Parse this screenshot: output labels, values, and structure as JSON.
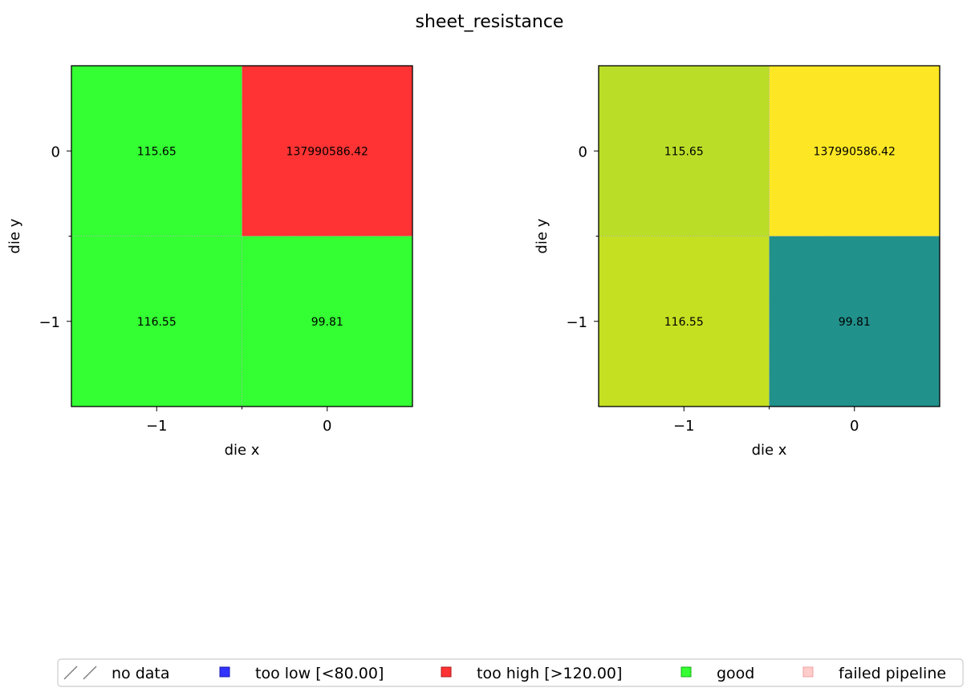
{
  "title": "sheet_resistance",
  "chart_data": [
    {
      "type": "heatmap",
      "coloring": "categorical-threshold",
      "xlabel": "die x",
      "ylabel": "die y",
      "x_ticks": [
        "−1",
        "0"
      ],
      "y_ticks": [
        "0",
        "−1"
      ],
      "cells": [
        {
          "die_x": -1,
          "die_y": 0,
          "value": 115.65,
          "label": "115.65",
          "category": "good",
          "color": "#33ff33"
        },
        {
          "die_x": 0,
          "die_y": 0,
          "value": 137990586.42,
          "label": "137990586.42",
          "category": "too high",
          "color": "#ff3333"
        },
        {
          "die_x": -1,
          "die_y": -1,
          "value": 116.55,
          "label": "116.55",
          "category": "good",
          "color": "#33ff33"
        },
        {
          "die_x": 0,
          "die_y": -1,
          "value": 99.81,
          "label": "99.81",
          "category": "good",
          "color": "#33ff33"
        }
      ]
    },
    {
      "type": "heatmap",
      "coloring": "colormap",
      "xlabel": "die x",
      "ylabel": "die y",
      "x_ticks": [
        "−1",
        "0"
      ],
      "y_ticks": [
        "0",
        "−1"
      ],
      "cells": [
        {
          "die_x": -1,
          "die_y": 0,
          "value": 115.65,
          "label": "115.65",
          "color": "#bade28"
        },
        {
          "die_x": 0,
          "die_y": 0,
          "value": 137990586.42,
          "label": "137990586.42",
          "color": "#fde725"
        },
        {
          "die_x": -1,
          "die_y": -1,
          "value": 116.55,
          "label": "116.55",
          "color": "#c5e021"
        },
        {
          "die_x": 0,
          "die_y": -1,
          "value": 99.81,
          "label": "99.81",
          "color": "#21918c"
        }
      ]
    }
  ],
  "legend": {
    "placement": "bottom-center",
    "items": [
      {
        "label": "no data",
        "marker": "hatch",
        "color": "#808080"
      },
      {
        "label": "too low [<80.00]",
        "marker": "square",
        "color": "#3333ff"
      },
      {
        "label": "too high [>120.00]",
        "marker": "square",
        "color": "#ff3333"
      },
      {
        "label": "good",
        "marker": "square",
        "color": "#33ff33"
      },
      {
        "label": "failed pipeline",
        "marker": "square",
        "color": "#ffcccc"
      }
    ]
  }
}
